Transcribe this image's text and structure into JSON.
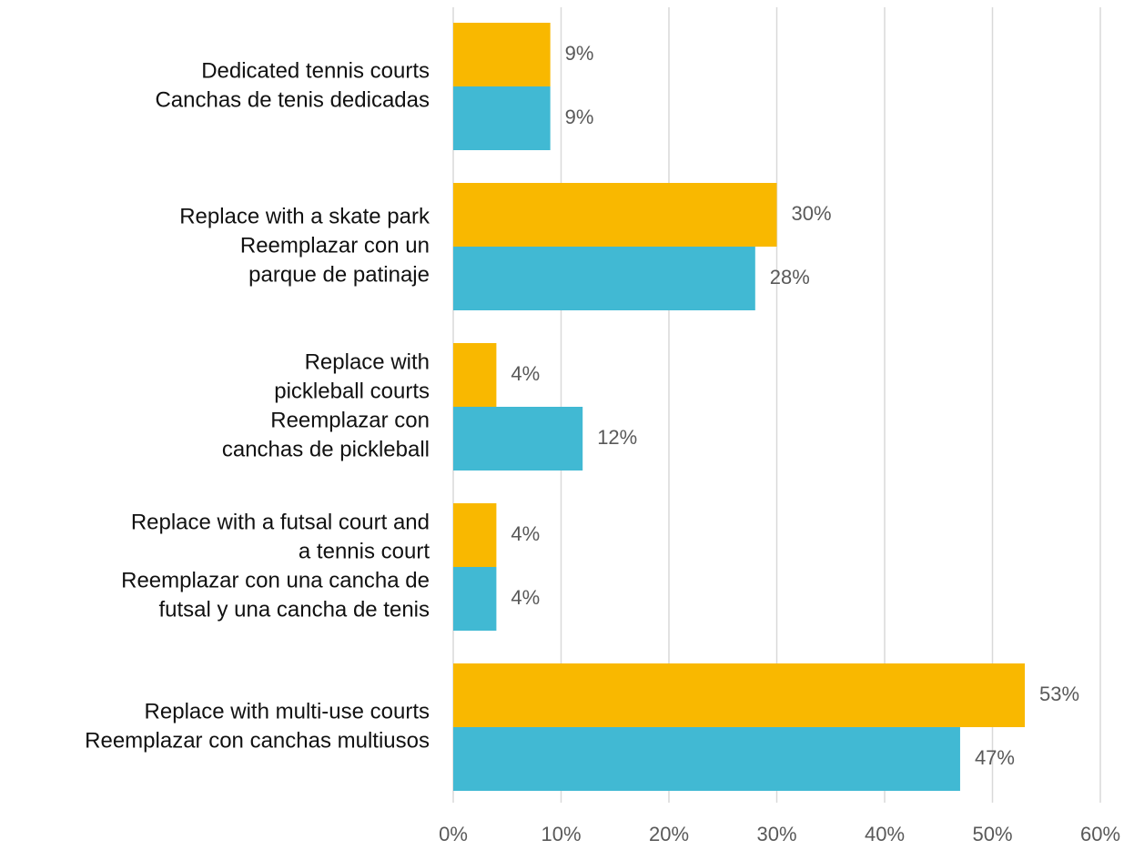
{
  "chart_data": {
    "type": "bar",
    "orientation": "horizontal",
    "categories": [
      [
        "Dedicated tennis courts",
        "Canchas de tenis dedicadas"
      ],
      [
        "Replace with a skate park",
        "Reemplazar con un",
        "parque de patinaje"
      ],
      [
        "Replace with",
        "pickleball courts",
        "Reemplazar con",
        "canchas de pickleball"
      ],
      [
        "Replace with a futsal court and",
        "a tennis court",
        "Reemplazar con una cancha de",
        "futsal y una cancha de tenis"
      ],
      [
        "Replace with multi-use courts",
        "Reemplazar con canchas multiusos"
      ]
    ],
    "series": [
      {
        "color": "#f9b800",
        "values": [
          9,
          30,
          4,
          4,
          53
        ],
        "value_labels": [
          "9%",
          "30%",
          "4%",
          "4%",
          "53%"
        ]
      },
      {
        "color": "#41b9d3",
        "values": [
          9,
          28,
          12,
          4,
          47
        ],
        "value_labels": [
          "9%",
          "28%",
          "12%",
          "4%",
          "47%"
        ]
      }
    ],
    "xlim": [
      0,
      60
    ],
    "xticks": [
      {
        "value": 0,
        "label": "0%"
      },
      {
        "value": 10,
        "label": "10%"
      },
      {
        "value": 20,
        "label": "20%"
      },
      {
        "value": 30,
        "label": "30%"
      },
      {
        "value": 40,
        "label": "40%"
      },
      {
        "value": 50,
        "label": "50%"
      },
      {
        "value": 60,
        "label": "60%"
      }
    ],
    "grid": true
  }
}
